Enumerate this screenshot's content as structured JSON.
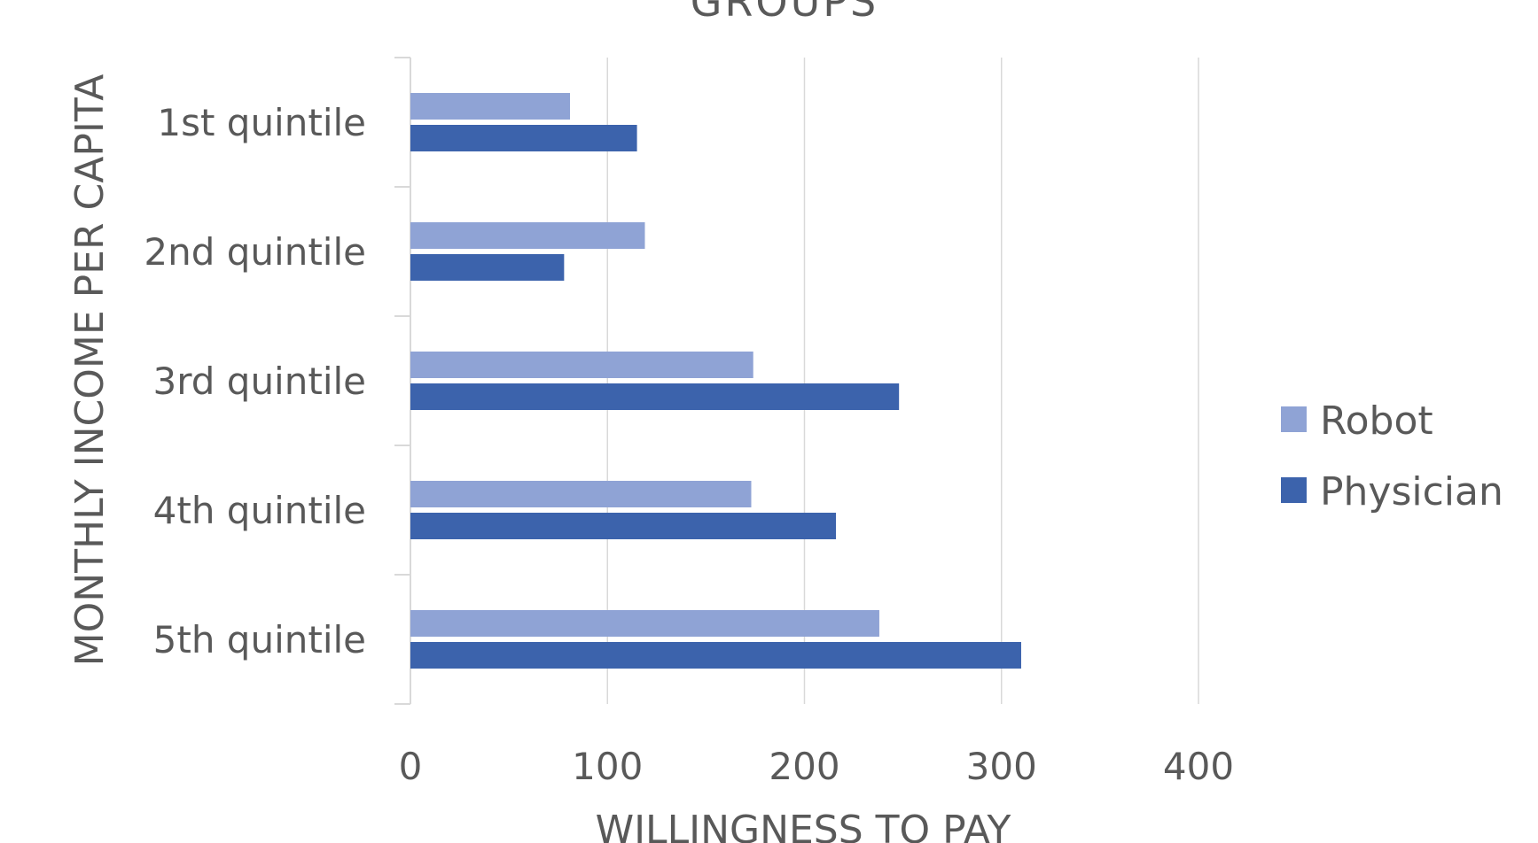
{
  "chart_data": {
    "type": "bar",
    "orientation": "horizontal",
    "title": "GROUPS",
    "xlabel": "WILLINGNESS TO PAY",
    "ylabel": "MONTHLY INCOME PER CAPITA",
    "categories": [
      "1st quintile",
      "2nd quintile",
      "3rd quintile",
      "4th quintile",
      "5th quintile"
    ],
    "series": [
      {
        "name": "Robot",
        "color": "#8FA3D5",
        "values": [
          81,
          119,
          174,
          173,
          238
        ]
      },
      {
        "name": "Physician",
        "color": "#3C63AC",
        "values": [
          115,
          78,
          248,
          216,
          310
        ]
      }
    ],
    "xlim": [
      0,
      400
    ],
    "xticks": [
      0,
      100,
      200,
      300,
      400
    ],
    "grid": "vertical",
    "legend_position": "right"
  }
}
